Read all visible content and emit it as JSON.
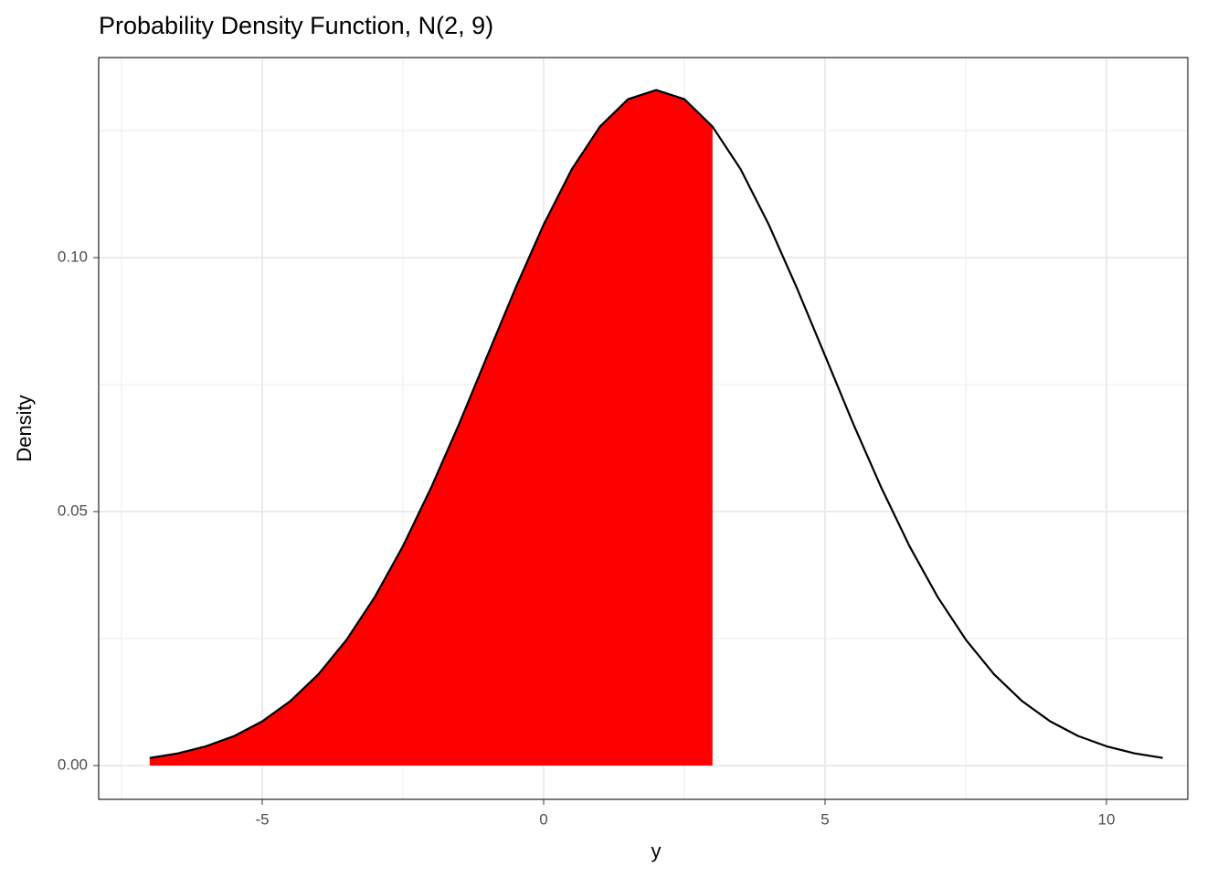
{
  "chart_data": {
    "type": "line",
    "title": "Probability Density Function, N(2, 9)",
    "x_label": "y",
    "y_label": "Density",
    "x": [
      -7,
      -6.5,
      -6,
      -5.5,
      -5,
      -4.5,
      -4,
      -3.5,
      -3,
      -2.5,
      -2,
      -1.5,
      -1,
      -0.5,
      0,
      0.5,
      1,
      1.5,
      2,
      2.5,
      3,
      3.5,
      4,
      4.5,
      5,
      5.5,
      6,
      6.5,
      7,
      7.5,
      8,
      8.5,
      9,
      9.5,
      10,
      10.5,
      11
    ],
    "values": [
      0.0015,
      0.0024,
      0.0038,
      0.0058,
      0.0087,
      0.0127,
      0.018,
      0.0248,
      0.0332,
      0.0432,
      0.0547,
      0.0673,
      0.0807,
      0.094,
      0.1065,
      0.1174,
      0.1258,
      0.1312,
      0.133,
      0.1312,
      0.1258,
      0.1174,
      0.1065,
      0.094,
      0.0807,
      0.0673,
      0.0547,
      0.0432,
      0.0332,
      0.0248,
      0.018,
      0.0127,
      0.0087,
      0.0058,
      0.0038,
      0.0024,
      0.0015
    ],
    "color": "#000000",
    "shaded": {
      "from": -7,
      "to": 3,
      "color": "#ff0000"
    },
    "xlim": [
      -7.906,
      11.445
    ],
    "ylim": [
      -0.00665,
      0.13939
    ],
    "xticks": [
      -5,
      0,
      5,
      10
    ],
    "yticks": [
      {
        "value": 0,
        "label": "0.00"
      },
      {
        "value": 0.05,
        "label": "0.05"
      },
      {
        "value": 0.1,
        "label": "0.10"
      }
    ],
    "x_minor_grid": [
      -7.5,
      -2.5,
      2.5,
      7.5
    ],
    "y_minor_grid": [
      0.025,
      0.075,
      0.125
    ],
    "grid": true
  }
}
